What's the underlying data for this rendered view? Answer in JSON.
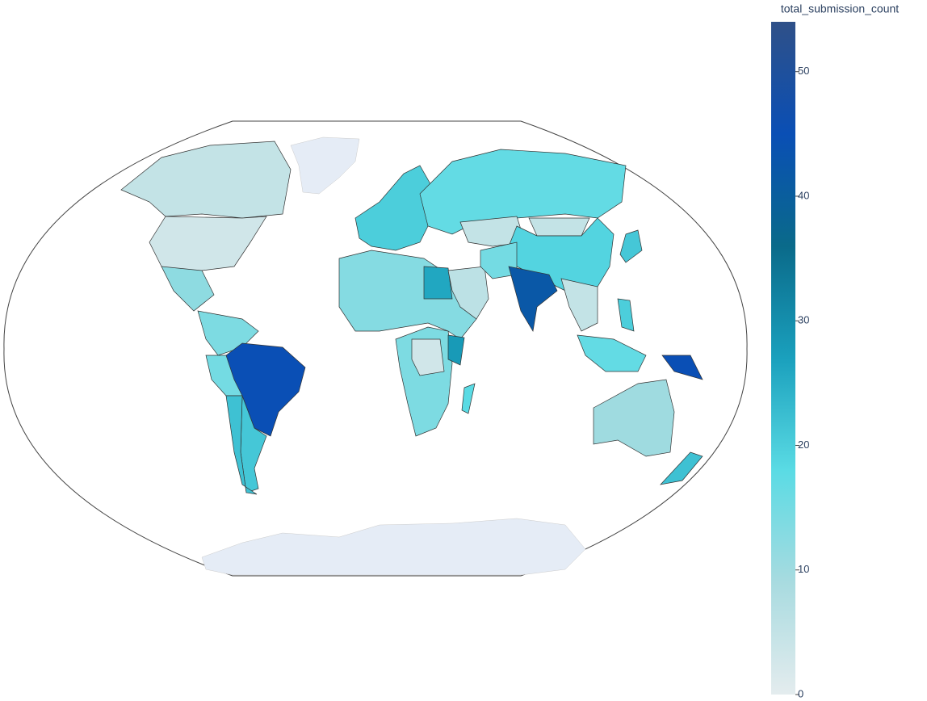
{
  "chart_data": {
    "type": "choropleth",
    "colorbar_title": "total_submission_count",
    "values": [
      5,
      3,
      12,
      14,
      45,
      15,
      21,
      22,
      13,
      26,
      14,
      3,
      28,
      18,
      20,
      17,
      5,
      5,
      19,
      6,
      15,
      42,
      5,
      17,
      20,
      21,
      45,
      10,
      22
    ],
    "colorscale": [
      "#e4ecee",
      "#a8dbe0",
      "#5adbe4",
      "#1aa0bd",
      "#0a6a8a",
      "#0a4fb5",
      "#2f5088"
    ],
    "zlim": [
      0,
      54
    ],
    "zticks": [
      0,
      10,
      20,
      30,
      40,
      50
    ]
  }
}
